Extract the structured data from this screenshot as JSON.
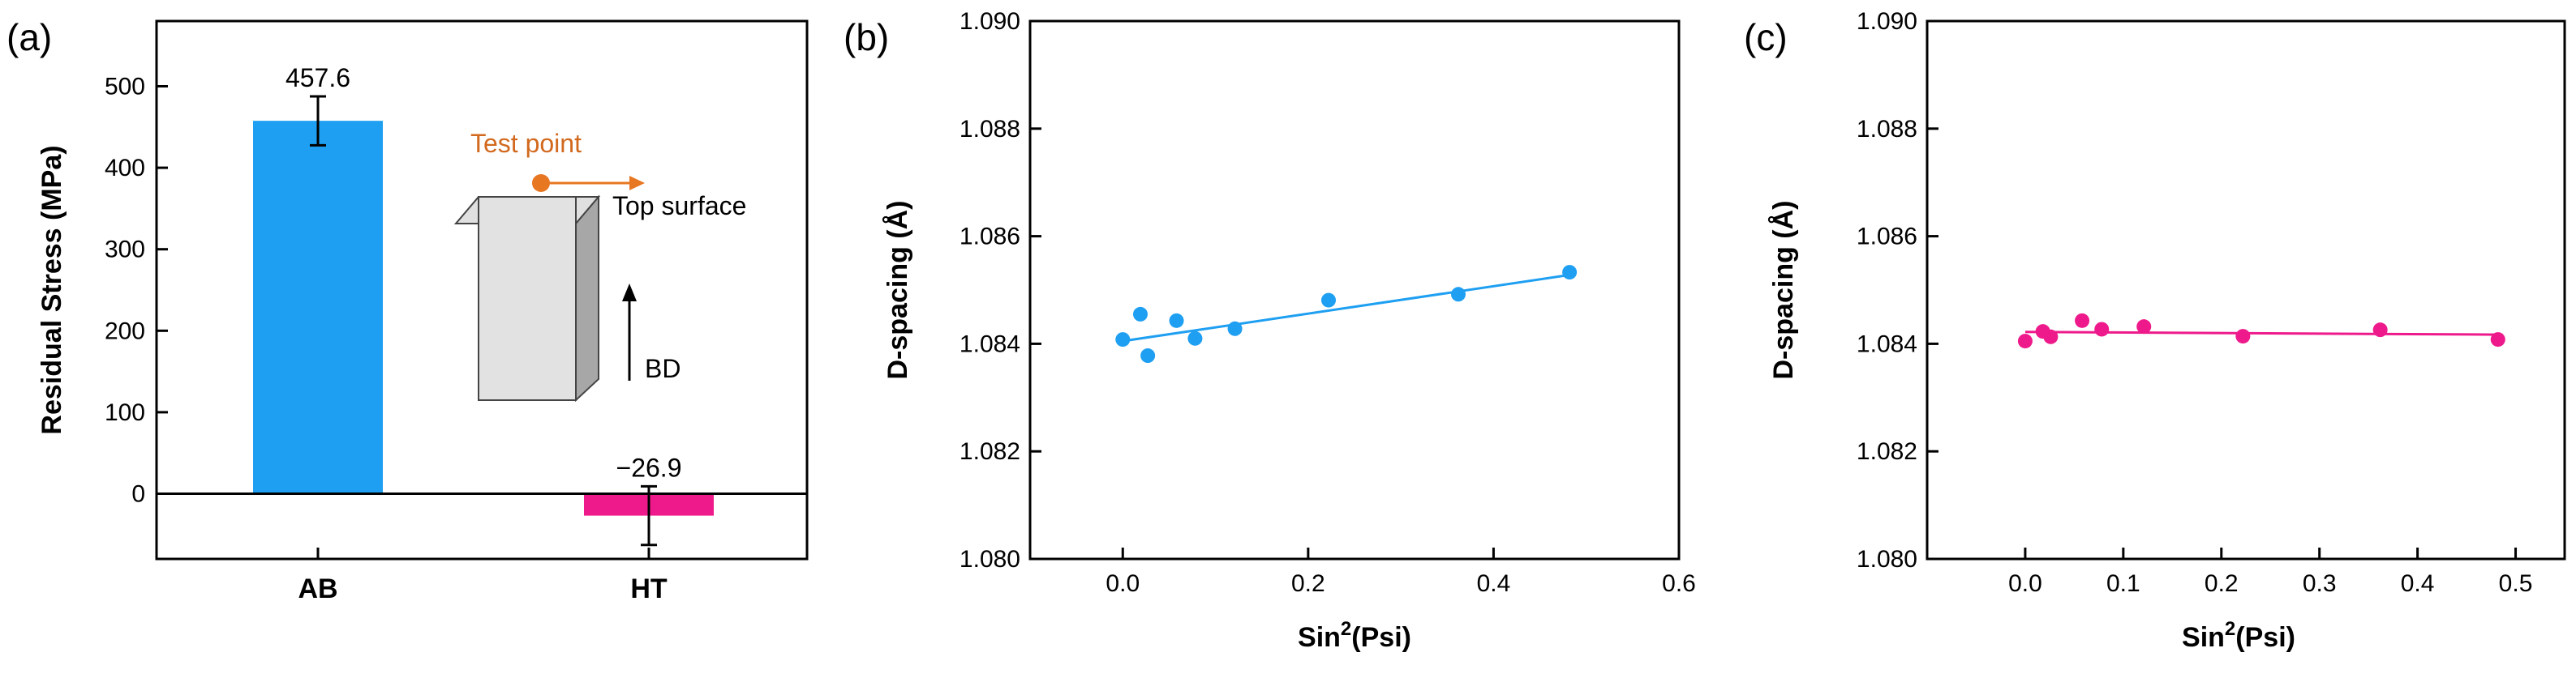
{
  "chart_data": [
    {
      "panel": "(a)",
      "type": "bar",
      "categories": [
        "AB",
        "HT"
      ],
      "values": [
        457.6,
        -26.9
      ],
      "errors": [
        30,
        36
      ],
      "value_labels": [
        "457.6",
        "−26.9"
      ],
      "colors": [
        "#1e9ff2",
        "#ee1a8c"
      ],
      "xlabel": "",
      "ylabel": "Residual Stress (MPa)",
      "ylim": [
        -80,
        580
      ],
      "yticks": [
        0,
        100,
        200,
        300,
        400,
        500
      ],
      "zero_line": true,
      "inset": {
        "test_point_label": "Test point",
        "surface_label": "Top surface",
        "direction_label": "BD",
        "test_point_color": "#e87722"
      }
    },
    {
      "panel": "(b)",
      "type": "scatter",
      "xlabel_base": "Sin",
      "xlabel_sup": "2",
      "xlabel_rest": "(Psi)",
      "ylabel": "D-spacing (Å)",
      "xlim": [
        -0.1,
        0.6
      ],
      "ylim": [
        1.08,
        1.09
      ],
      "xticks": [
        0.0,
        0.2,
        0.4,
        0.6
      ],
      "xtick_labels": [
        "0.0",
        "0.2",
        "0.4",
        "0.6"
      ],
      "yticks": [
        1.08,
        1.082,
        1.084,
        1.086,
        1.088,
        1.09
      ],
      "ytick_labels": [
        "1.080",
        "1.082",
        "1.084",
        "1.086",
        "1.088",
        "1.090"
      ],
      "color": "#1e9ff2",
      "x": [
        0.0,
        0.019,
        0.027,
        0.058,
        0.078,
        0.121,
        0.222,
        0.362,
        0.482
      ],
      "y": [
        1.08408,
        1.08455,
        1.08378,
        1.08443,
        1.0841,
        1.08428,
        1.08481,
        1.08492,
        1.08533
      ],
      "fit_line": {
        "x": [
          0.0,
          0.482
        ],
        "y": [
          1.08405,
          1.08528
        ]
      }
    },
    {
      "panel": "(c)",
      "type": "scatter",
      "xlabel_base": "Sin",
      "xlabel_sup": "2",
      "xlabel_rest": "(Psi)",
      "ylabel": "D-spacing (Å)",
      "xlim": [
        -0.1,
        0.55
      ],
      "ylim": [
        1.08,
        1.09
      ],
      "xticks": [
        0.0,
        0.1,
        0.2,
        0.3,
        0.4,
        0.5
      ],
      "xtick_labels": [
        "0.0",
        "0.1",
        "0.2",
        "0.3",
        "0.4",
        "0.5"
      ],
      "yticks": [
        1.08,
        1.082,
        1.084,
        1.086,
        1.088,
        1.09
      ],
      "ytick_labels": [
        "1.080",
        "1.082",
        "1.084",
        "1.086",
        "1.088",
        "1.090"
      ],
      "color": "#ee1a8c",
      "x": [
        0.0,
        0.018,
        0.026,
        0.058,
        0.078,
        0.121,
        0.222,
        0.362,
        0.482
      ],
      "y": [
        1.08405,
        1.08423,
        1.08413,
        1.08443,
        1.08427,
        1.08432,
        1.08414,
        1.08426,
        1.08408
      ],
      "fit_line": {
        "x": [
          0.0,
          0.482
        ],
        "y": [
          1.08422,
          1.08417
        ]
      }
    }
  ]
}
